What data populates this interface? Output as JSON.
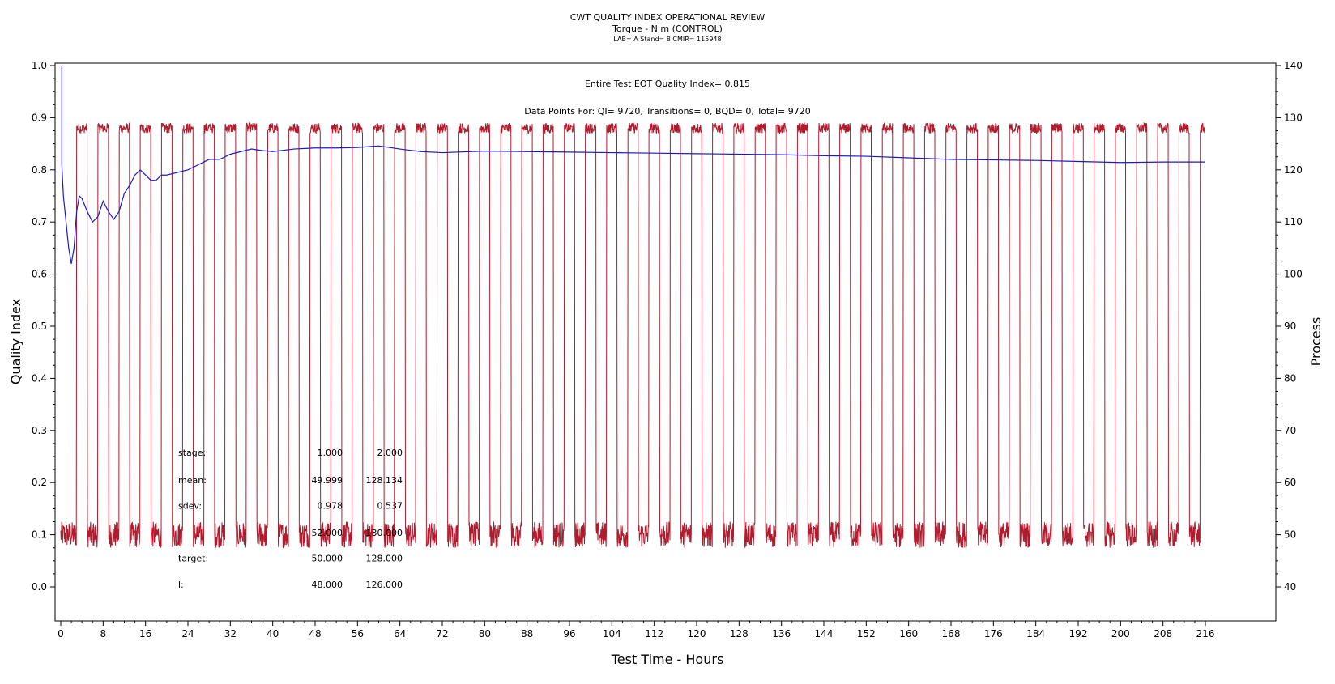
{
  "chart_data": {
    "type": "line",
    "title": "CWT QUALITY INDEX OPERATIONAL REVIEW",
    "subtitle": "Torque - N m (CONTROL)",
    "subtitle2": "LAB= A Stand= 8 CMIR= 115948",
    "xlabel": "Test Time - Hours",
    "ylabel": "Quality Index",
    "y2label": "Process",
    "xlim": [
      0,
      216
    ],
    "ylim": [
      0,
      1.0
    ],
    "y2lim": [
      40,
      140
    ],
    "xticks": [
      0,
      8,
      16,
      24,
      32,
      40,
      48,
      56,
      64,
      72,
      80,
      88,
      96,
      104,
      112,
      120,
      128,
      136,
      144,
      152,
      160,
      168,
      176,
      184,
      192,
      200,
      208,
      216
    ],
    "yticks": [
      0.0,
      0.1,
      0.2,
      0.3,
      0.4,
      0.5,
      0.6,
      0.7,
      0.8,
      0.9,
      1.0
    ],
    "y2ticks": [
      40,
      50,
      60,
      70,
      80,
      90,
      100,
      110,
      120,
      130,
      140
    ],
    "grid": false,
    "annotations": {
      "quality_index": "Entire Test EOT Quality Index=  0.815",
      "data_points": "Data Points For: QI=  9720, Transitions=     0, BQD=     0, Total=  9720"
    },
    "stats_table": {
      "rows": [
        {
          "label": "stage:",
          "v1": "1.000",
          "v2": "2.000"
        },
        {
          "label": "mean:",
          "v1": "49.999",
          "v2": "128.134"
        },
        {
          "label": "sdev:",
          "v1": "0.978",
          "v2": "0.537"
        },
        {
          "label": "",
          "v1": "52.000",
          "v2": "130.000"
        },
        {
          "label": "target:",
          "v1": "50.000",
          "v2": "128.000"
        },
        {
          "label": "l:",
          "v1": "48.000",
          "v2": "126.000"
        }
      ]
    },
    "series": [
      {
        "name": "Quality Index",
        "axis": "left",
        "color": "#1a1acc",
        "x": [
          0.2,
          0.5,
          1,
          1.5,
          2,
          2.5,
          3,
          3.5,
          4,
          5,
          6,
          7,
          8,
          9,
          10,
          11,
          12,
          13,
          14,
          15,
          16,
          17,
          18,
          19,
          20,
          22,
          24,
          26,
          28,
          30,
          32,
          34,
          36,
          38,
          40,
          44,
          48,
          52,
          56,
          60,
          64,
          68,
          72,
          80,
          88,
          96,
          104,
          112,
          120,
          128,
          136,
          144,
          152,
          160,
          168,
          176,
          184,
          192,
          200,
          208,
          216
        ],
        "y": [
          0.81,
          0.75,
          0.7,
          0.65,
          0.62,
          0.65,
          0.72,
          0.75,
          0.745,
          0.72,
          0.7,
          0.71,
          0.74,
          0.72,
          0.705,
          0.72,
          0.755,
          0.77,
          0.79,
          0.8,
          0.79,
          0.78,
          0.78,
          0.79,
          0.79,
          0.795,
          0.8,
          0.81,
          0.82,
          0.82,
          0.83,
          0.835,
          0.84,
          0.837,
          0.835,
          0.84,
          0.842,
          0.842,
          0.843,
          0.846,
          0.84,
          0.835,
          0.833,
          0.836,
          0.835,
          0.834,
          0.833,
          0.832,
          0.831,
          0.83,
          0.829,
          0.827,
          0.826,
          0.823,
          0.82,
          0.819,
          0.818,
          0.816,
          0.814,
          0.815,
          0.815
        ]
      },
      {
        "name": "Process",
        "axis": "right",
        "color": "#b01c2e",
        "pattern": "square_wave",
        "low_level": 50,
        "high_level": 128,
        "first_rise_hours": 3.0,
        "period_hours": 4.0,
        "duty_high": 0.5,
        "low_noise": 2.5,
        "high_noise": 1.0
      }
    ]
  }
}
